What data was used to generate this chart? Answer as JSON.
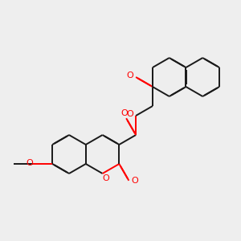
{
  "bg_color": "#eeeeee",
  "bond_color": "#1a1a1a",
  "oxygen_color": "#ff0000",
  "line_width": 1.4,
  "dbo": 0.018,
  "figsize": [
    3.0,
    3.0
  ],
  "dpi": 100,
  "xlim": [
    0,
    300
  ],
  "ylim": [
    0,
    300
  ]
}
